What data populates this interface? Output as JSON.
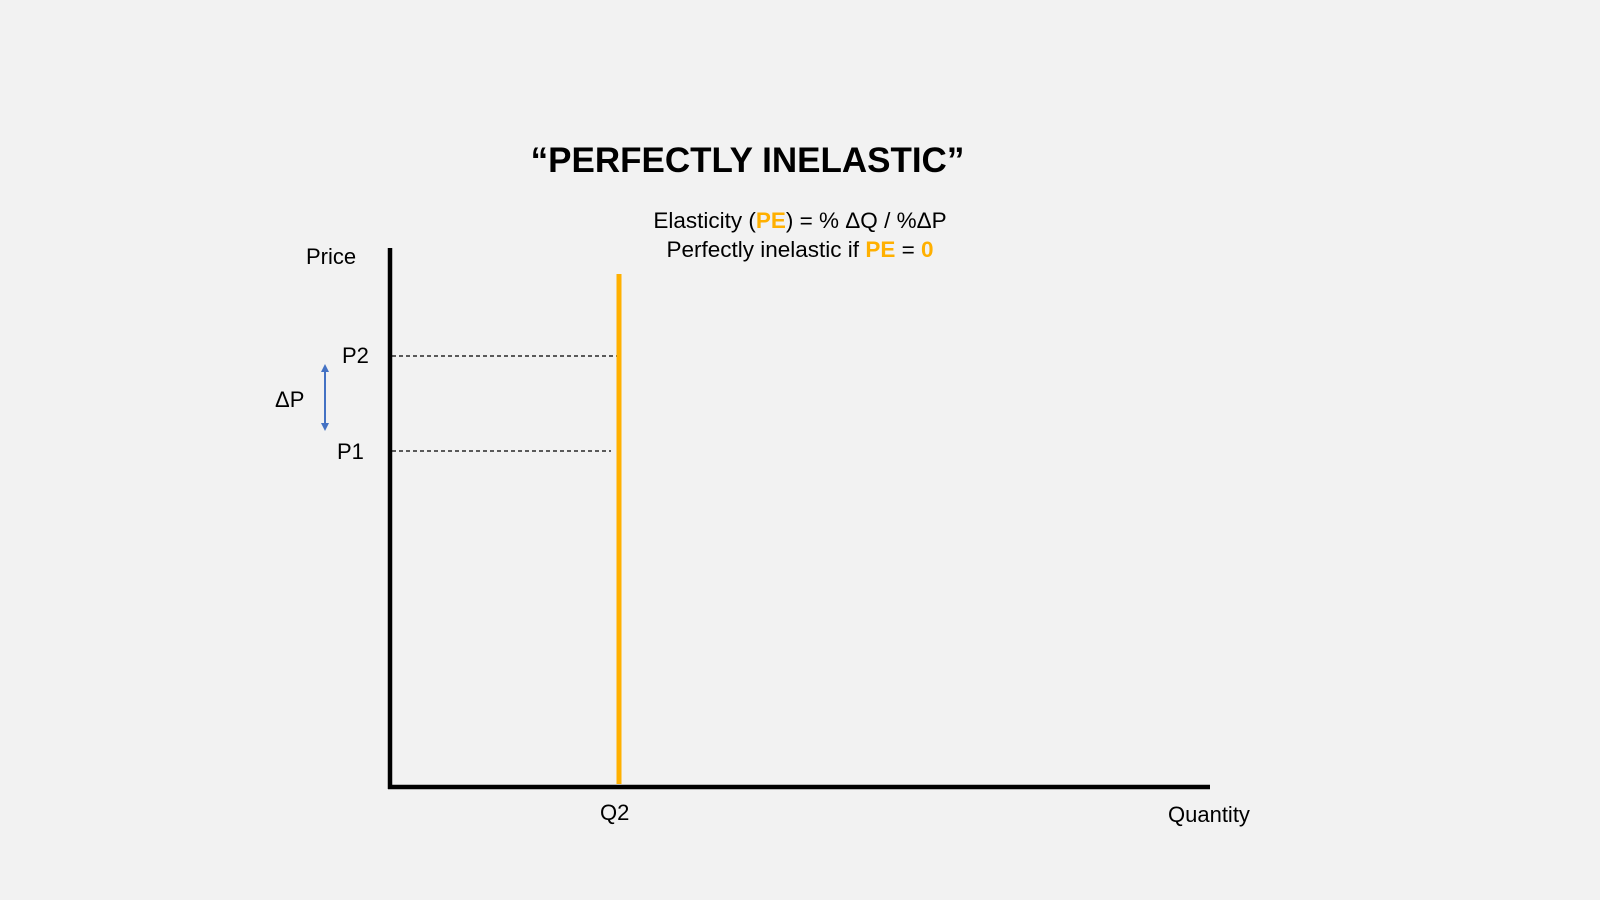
{
  "slide": {
    "title": "“PERFECTLY INELASTIC”",
    "formula_line1": {
      "prefix": "Elasticity (",
      "pe": "PE",
      "suffix": ") = % ΔQ / %ΔP"
    },
    "formula_line2": {
      "prefix": "Perfectly inelastic if ",
      "pe": "PE",
      "equals": " = ",
      "value": "0"
    }
  },
  "graph": {
    "y_axis_label": "Price",
    "x_axis_label": "Quantity",
    "price_levels": {
      "p2": "P2",
      "p1": "P1"
    },
    "delta_p_label": "ΔP",
    "quantity_mark": "Q2",
    "colors": {
      "axis": "#000000",
      "curve": "#ffb000",
      "highlight_text": "#ffb000",
      "arrow": "#4472c4",
      "guide": "#000000"
    }
  }
}
